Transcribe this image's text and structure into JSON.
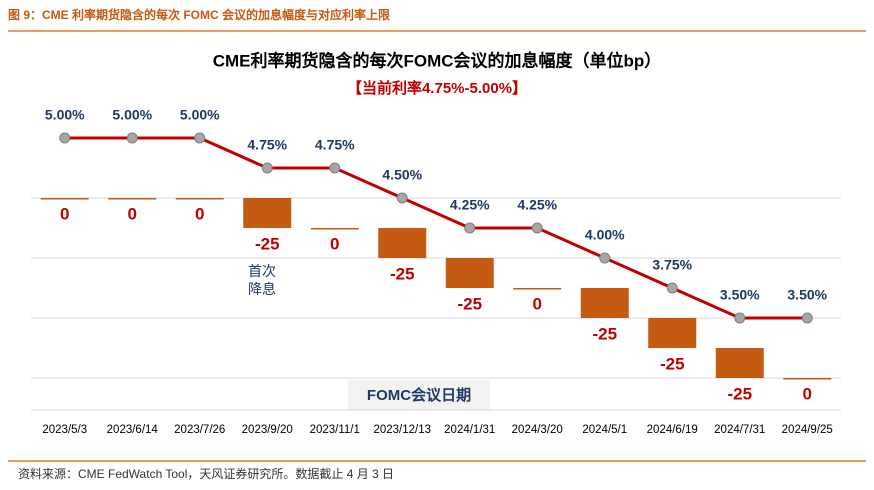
{
  "header": "图 9：CME 利率期货隐含的每次 FOMC 会议的加息幅度与对应利率上限",
  "chart_data": {
    "type": "waterfall-line",
    "title": "CME利率期货隐含的每次FOMC会议的加息幅度（单位bp）",
    "subtitle": "【当前利率4.75%-5.00%】",
    "x_label": "FOMC会议日期",
    "annotation": "首次降息",
    "categories": [
      "2023/5/3",
      "2023/6/14",
      "2023/7/26",
      "2023/9/20",
      "2023/11/1",
      "2023/12/13",
      "2024/1/31",
      "2024/3/20",
      "2024/5/1",
      "2024/6/19",
      "2024/7/31",
      "2024/9/25"
    ],
    "series": [
      {
        "type": "waterfall",
        "color": "#c55a11",
        "label_color": "#c00000",
        "values": [
          0,
          0,
          0,
          -25,
          0,
          -25,
          -25,
          0,
          -25,
          -25,
          -25,
          0
        ]
      },
      {
        "type": "line",
        "axis": "y2",
        "color": "#c00000",
        "marker_color": "#a6a6a6",
        "label_color": "#1f3864",
        "values": [
          5.0,
          5.0,
          5.0,
          4.75,
          4.75,
          4.5,
          4.25,
          4.25,
          4.0,
          3.75,
          3.5,
          3.5
        ],
        "value_labels": [
          "5.00%",
          "5.00%",
          "5.00%",
          "4.75%",
          "4.75%",
          "4.50%",
          "4.25%",
          "4.25%",
          "4.00%",
          "3.75%",
          "3.50%",
          "3.50%"
        ]
      }
    ],
    "ylim": [
      -175,
      50
    ],
    "yticks": [
      -150,
      -100,
      -50,
      0
    ],
    "y2lim": [
      2.75,
      5.0
    ],
    "grid": true
  },
  "source": "资料来源：CME FedWatch Tool，天风证券研究所。数据截止 4 月 3 日"
}
